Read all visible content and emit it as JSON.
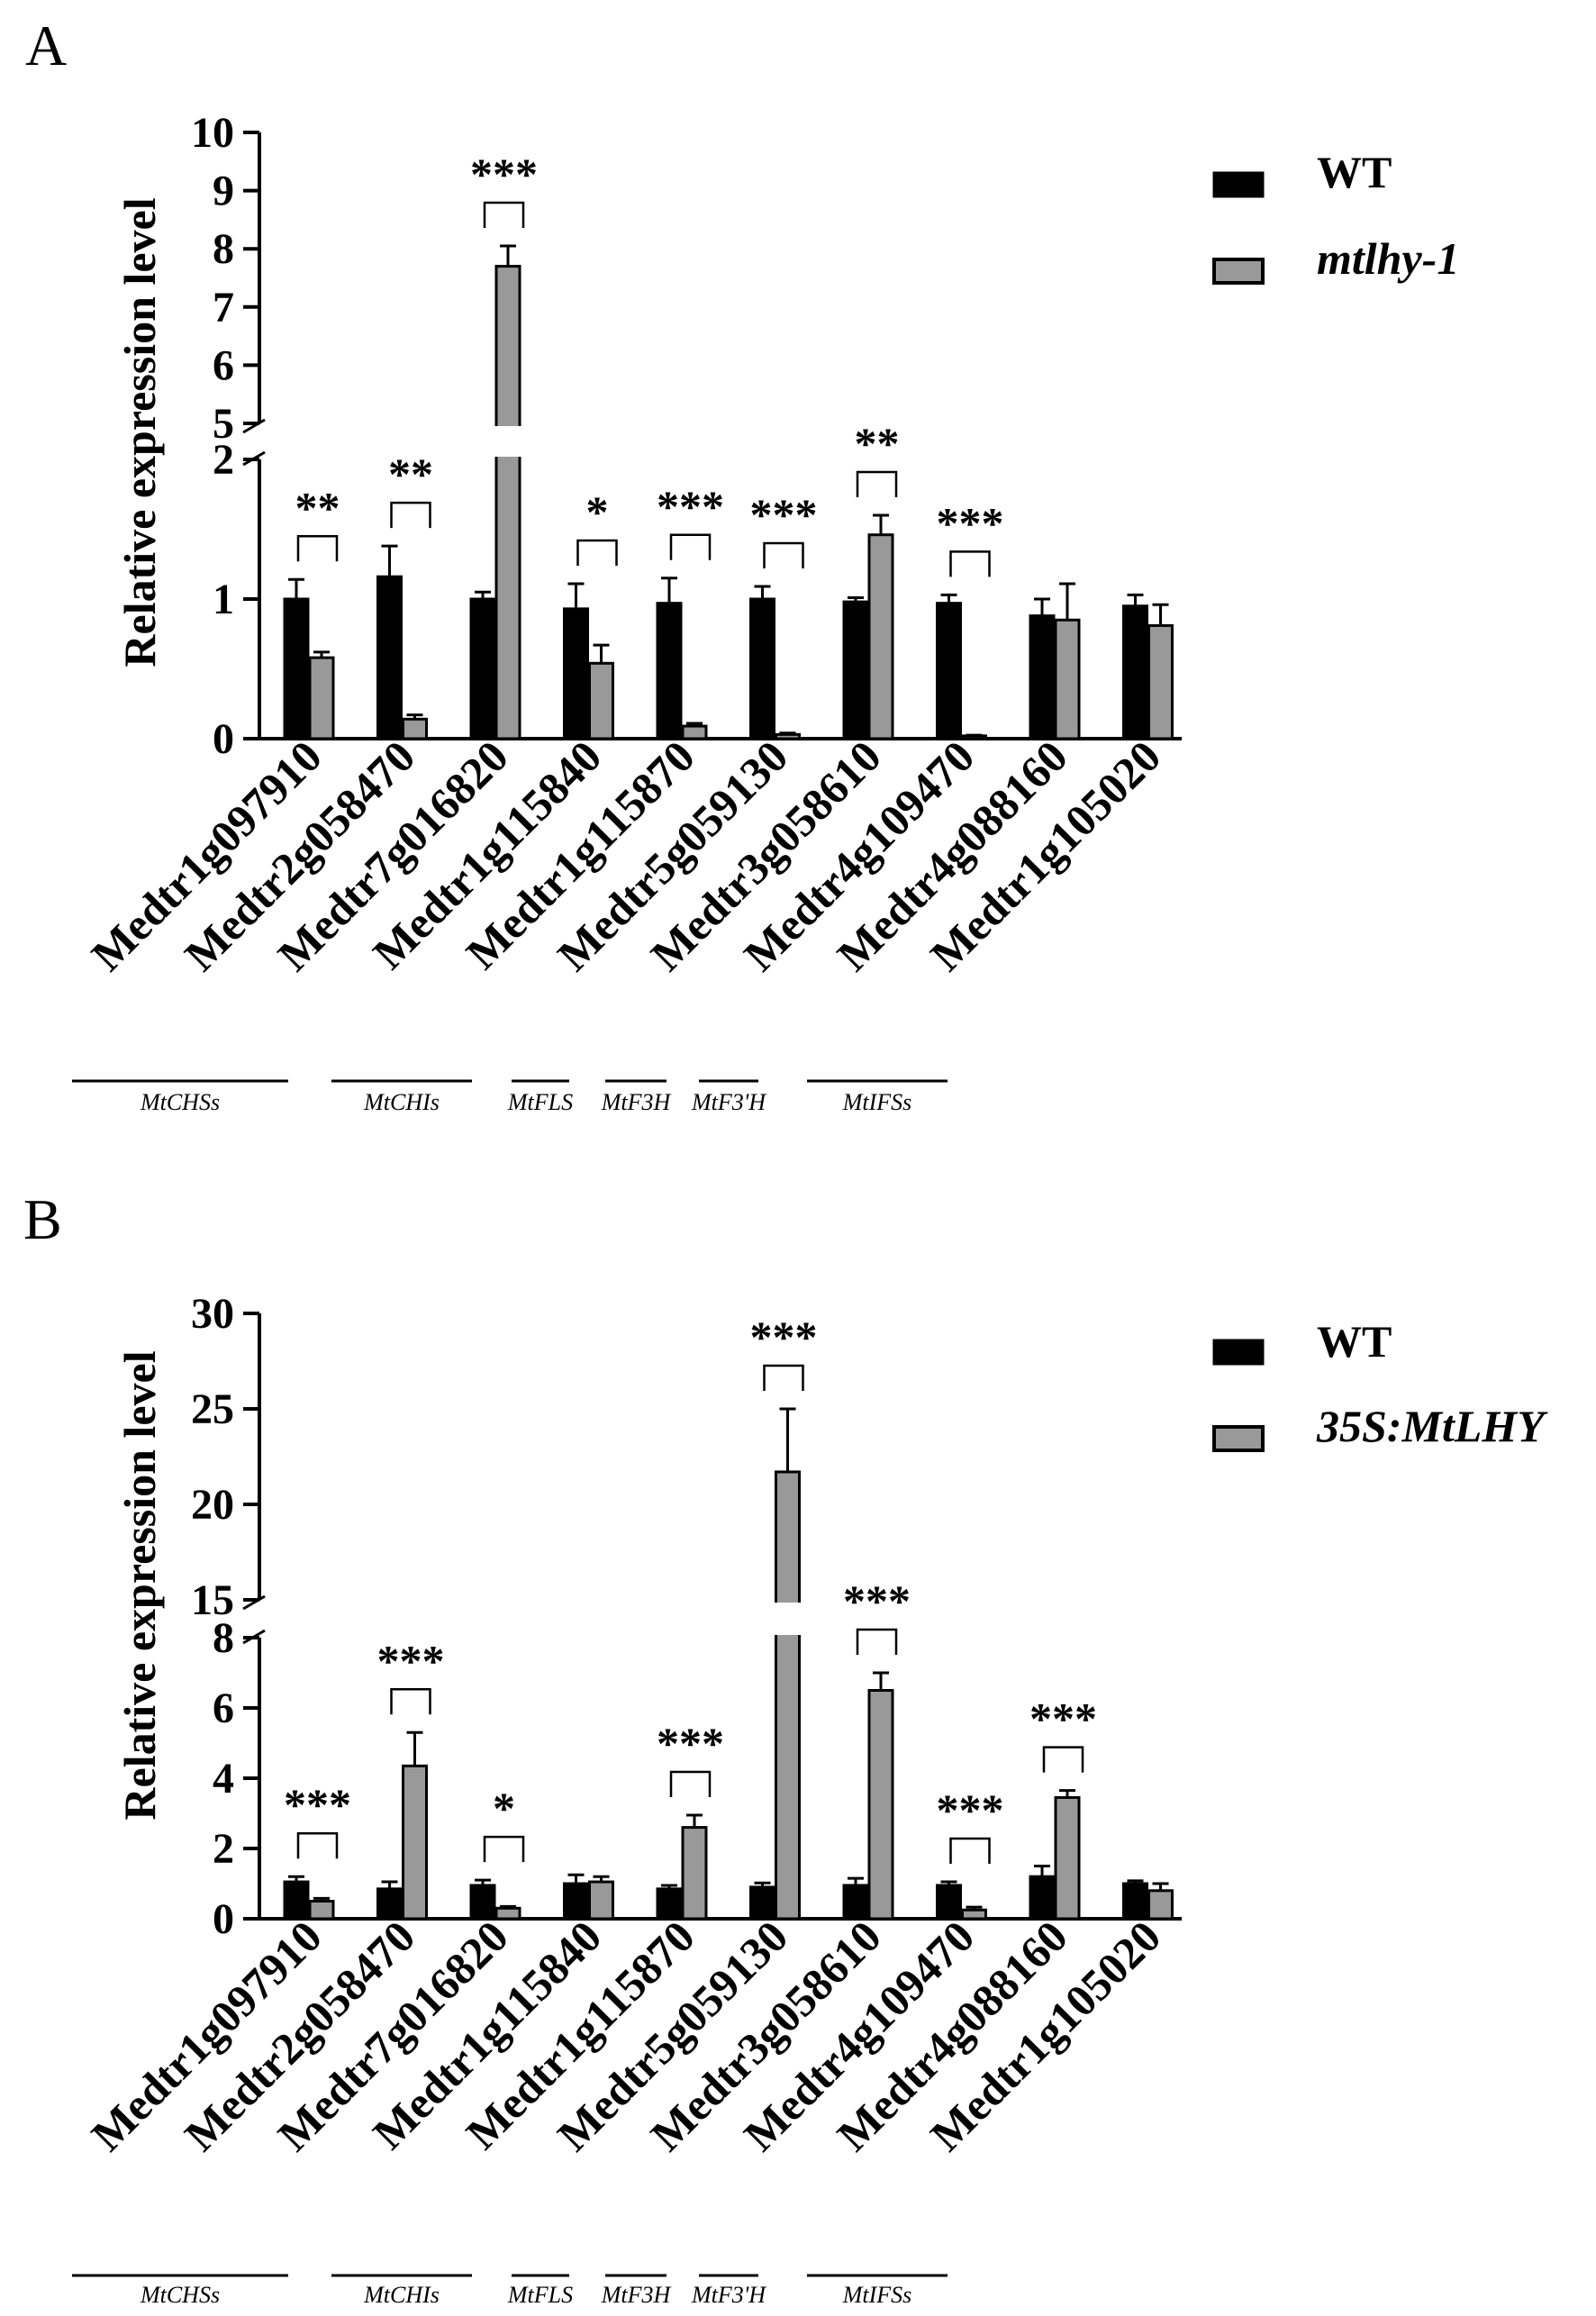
{
  "colors": {
    "wt": "#000000",
    "mut": "#999999",
    "stroke": "#000000"
  },
  "chart_data": [
    {
      "panel_label": "A",
      "type": "bar",
      "ylabel": "Relative expression level",
      "legend": {
        "placement": "top-right",
        "entries": [
          {
            "name": "WT",
            "italic": false,
            "color_key": "wt"
          },
          {
            "name": "mtlhy-1",
            "italic": true,
            "color_key": "mut"
          }
        ]
      },
      "axis": {
        "lower": {
          "min": 0,
          "max": 2,
          "ticks": [
            0,
            1,
            2
          ]
        },
        "upper": {
          "min": 5,
          "max": 10,
          "ticks": [
            5,
            6,
            7,
            8,
            9,
            10
          ]
        }
      },
      "categories": [
        "Medtr1g097910",
        "Medtr2g058470",
        "Medtr7g016820",
        "Medtr1g115840",
        "Medtr1g115870",
        "Medtr5g059130",
        "Medtr3g058610",
        "Medtr4g109470",
        "Medtr4g088160",
        "Medtr1g105020"
      ],
      "series": [
        {
          "name": "WT",
          "values": [
            1.0,
            1.16,
            1.0,
            0.93,
            0.97,
            1.0,
            0.98,
            0.97,
            0.88,
            0.95
          ],
          "errors": [
            0.14,
            0.22,
            0.05,
            0.18,
            0.18,
            0.09,
            0.03,
            0.06,
            0.12,
            0.08
          ]
        },
        {
          "name": "mtlhy-1",
          "values": [
            0.58,
            0.14,
            7.7,
            0.54,
            0.09,
            0.03,
            1.46,
            0.02,
            0.85,
            0.81
          ],
          "errors": [
            0.04,
            0.03,
            0.35,
            0.13,
            0.02,
            0.01,
            0.14,
            0.005,
            0.26,
            0.15
          ]
        }
      ],
      "significance": [
        "**",
        "**",
        "***",
        "*",
        "***",
        "***",
        "**",
        "***",
        "",
        ""
      ],
      "gene_groups": [
        {
          "label": "MtCHSs",
          "from": 0,
          "to": 2
        },
        {
          "label": "MtCHIs",
          "from": 2,
          "to": 3
        },
        {
          "label": "MtFLS",
          "from": 3,
          "to": 3
        },
        {
          "label": "MtF3H",
          "from": 4,
          "to": 4
        },
        {
          "label": "MtF3'H",
          "from": 5,
          "to": 5
        },
        {
          "label": "MtIFSs",
          "from": 6,
          "to": 7
        }
      ]
    },
    {
      "panel_label": "B",
      "type": "bar",
      "ylabel": "Relative expression level",
      "legend": {
        "placement": "top-right",
        "entries": [
          {
            "name": "WT",
            "italic": false,
            "color_key": "wt"
          },
          {
            "name": "35S:MtLHY",
            "italic": true,
            "color_key": "mut"
          }
        ]
      },
      "axis": {
        "lower": {
          "min": 0,
          "max": 8,
          "ticks": [
            0,
            2,
            4,
            6,
            8
          ]
        },
        "upper": {
          "min": 15,
          "max": 30,
          "ticks": [
            15,
            20,
            25,
            30
          ]
        }
      },
      "categories": [
        "Medtr1g097910",
        "Medtr2g058470",
        "Medtr7g016820",
        "Medtr1g115840",
        "Medtr1g115870",
        "Medtr5g059130",
        "Medtr3g058610",
        "Medtr4g109470",
        "Medtr4g088160",
        "Medtr1g105020"
      ],
      "series": [
        {
          "name": "WT",
          "values": [
            1.05,
            0.85,
            0.95,
            1.0,
            0.85,
            0.9,
            0.95,
            0.95,
            1.2,
            1.0
          ],
          "errors": [
            0.15,
            0.2,
            0.15,
            0.25,
            0.1,
            0.12,
            0.2,
            0.1,
            0.3,
            0.08
          ]
        },
        {
          "name": "35S:MtLHY",
          "values": [
            0.5,
            4.35,
            0.3,
            1.05,
            2.6,
            21.7,
            6.5,
            0.25,
            3.45,
            0.8
          ],
          "errors": [
            0.08,
            0.95,
            0.05,
            0.15,
            0.35,
            3.3,
            0.5,
            0.08,
            0.2,
            0.2
          ]
        }
      ],
      "significance": [
        "***",
        "***",
        "*",
        "",
        "***",
        "***",
        "***",
        "***",
        "***",
        ""
      ],
      "gene_groups": [
        {
          "label": "MtCHSs",
          "from": 0,
          "to": 2
        },
        {
          "label": "MtCHIs",
          "from": 2,
          "to": 3
        },
        {
          "label": "MtFLS",
          "from": 3,
          "to": 3
        },
        {
          "label": "MtF3H",
          "from": 4,
          "to": 4
        },
        {
          "label": "MtF3'H",
          "from": 5,
          "to": 5
        },
        {
          "label": "MtIFSs",
          "from": 6,
          "to": 7
        }
      ]
    }
  ]
}
